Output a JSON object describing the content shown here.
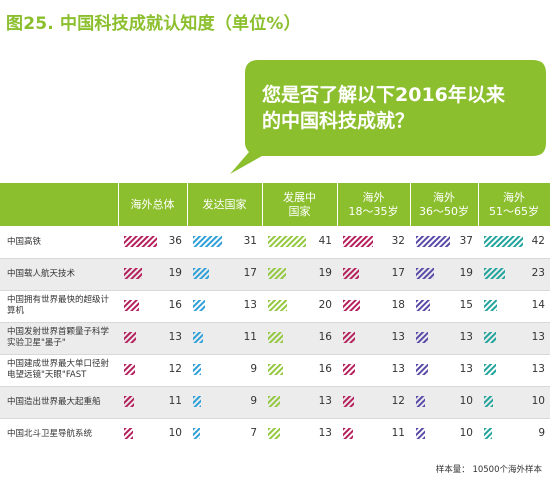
{
  "figure_title": "图25. 中国科技成就认知度（单位%）",
  "bubble": {
    "line1": "您是否了解以下2016年以来",
    "line2": "的中国科技成就？"
  },
  "colors": {
    "green": "#8cbf2e",
    "series": [
      "#b51f5c",
      "#2e9fd8",
      "#93c83e",
      "#b51f5c",
      "#5a4aa8",
      "#1fa39b"
    ]
  },
  "chart_data": {
    "type": "table",
    "columns": [
      {
        "lines": [
          "海外总体"
        ]
      },
      {
        "lines": [
          "发达国家"
        ]
      },
      {
        "lines": [
          "发展中",
          "国家"
        ]
      },
      {
        "lines": [
          "海外",
          "18～35岁"
        ]
      },
      {
        "lines": [
          "海外",
          "36～50岁"
        ]
      },
      {
        "lines": [
          "海外",
          "51～65岁"
        ]
      }
    ],
    "rows": [
      {
        "label": "中国高铁",
        "values": [
          36,
          31,
          41,
          32,
          37,
          42
        ]
      },
      {
        "label": "中国载人航天技术",
        "values": [
          19,
          17,
          19,
          17,
          19,
          23
        ]
      },
      {
        "label": "中国拥有世界最快的超级计算机",
        "values": [
          16,
          13,
          20,
          18,
          15,
          14
        ]
      },
      {
        "label": "中国发射世界首颗量子科学实验卫星\"墨子\"",
        "values": [
          13,
          11,
          16,
          13,
          13,
          13
        ]
      },
      {
        "label": "中国建成世界最大单口径射电望远镜\"天眼\"FAST",
        "values": [
          12,
          9,
          16,
          13,
          13,
          13
        ]
      },
      {
        "label": "中国造出世界最大起重船",
        "values": [
          11,
          9,
          13,
          12,
          10,
          10
        ]
      },
      {
        "label": "中国北斗卫星导航系统",
        "values": [
          10,
          7,
          13,
          11,
          10,
          9
        ]
      }
    ],
    "value_max": 42
  },
  "footnote": "样本量： 10500个海外样本"
}
